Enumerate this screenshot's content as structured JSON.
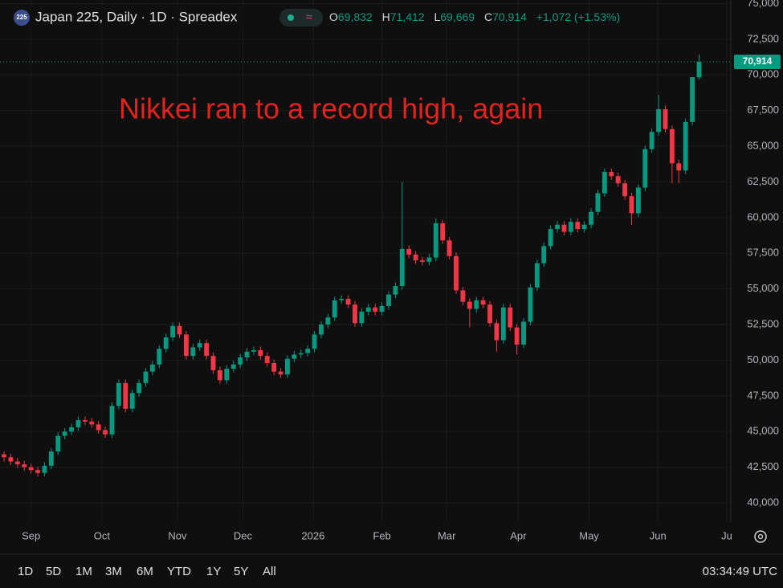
{
  "header": {
    "icon": "225",
    "title": "Japan 225, Daily · 1D · Spreadex",
    "badge": "≈",
    "o_label": "O",
    "open": "69,832",
    "h_label": "H",
    "high": "71,412",
    "l_label": "L",
    "low": "69,669",
    "c_label": "C",
    "close": "70,914",
    "change": "+1,072 (+1.53%)"
  },
  "chart_data": {
    "type": "candlestick",
    "annotation": "Nikkei ran to a record high, again",
    "up_color": "#089981",
    "down_color": "#f23645",
    "grid": true,
    "last_price": {
      "value": 70914,
      "label": "70,914"
    },
    "xlim": [
      -0.6,
      107.7
    ],
    "xticks": [
      {
        "value": 4,
        "label": "Sep"
      },
      {
        "value": 14.5,
        "label": "Oct"
      },
      {
        "value": 25.7,
        "label": "Nov"
      },
      {
        "value": 35.4,
        "label": "Dec"
      },
      {
        "value": 45.8,
        "label": "2026"
      },
      {
        "value": 56,
        "label": "Feb"
      },
      {
        "value": 65.6,
        "label": "Mar"
      },
      {
        "value": 76.2,
        "label": "Apr"
      },
      {
        "value": 86.7,
        "label": "May"
      },
      {
        "value": 96.9,
        "label": "Jun"
      },
      {
        "value": 107.1,
        "label": "Ju"
      }
    ],
    "ylim": [
      38650,
      75250
    ],
    "yticks": [
      {
        "value": 40000,
        "label": "40,000"
      },
      {
        "value": 42500,
        "label": "42,500"
      },
      {
        "value": 45000,
        "label": "45,000"
      },
      {
        "value": 47500,
        "label": "47,500"
      },
      {
        "value": 50000,
        "label": "50,000"
      },
      {
        "value": 52500,
        "label": "52,500"
      },
      {
        "value": 55000,
        "label": "55,000"
      },
      {
        "value": 57500,
        "label": "57,500"
      },
      {
        "value": 60000,
        "label": "60,000"
      },
      {
        "value": 62500,
        "label": "62,500"
      },
      {
        "value": 65000,
        "label": "65,000"
      },
      {
        "value": 67500,
        "label": "67,500"
      },
      {
        "value": 70000,
        "label": "70,000"
      },
      {
        "value": 72500,
        "label": "72,500"
      },
      {
        "value": 75000,
        "label": "75,000"
      }
    ],
    "candles": [
      [
        43400,
        43600,
        42900,
        43200
      ],
      [
        43200,
        43450,
        42650,
        42900
      ],
      [
        42900,
        43150,
        42450,
        42700
      ],
      [
        42700,
        42950,
        42250,
        42500
      ],
      [
        42500,
        42750,
        42050,
        42300
      ],
      [
        42300,
        42550,
        41850,
        42100
      ],
      [
        42100,
        42850,
        41850,
        42600
      ],
      [
        42600,
        43850,
        42350,
        43600
      ],
      [
        43600,
        44950,
        43350,
        44700
      ],
      [
        44700,
        45250,
        44450,
        45000
      ],
      [
        45000,
        45550,
        44750,
        45300
      ],
      [
        45300,
        46050,
        45050,
        45800
      ],
      [
        45800,
        46050,
        45450,
        45700
      ],
      [
        45700,
        45950,
        45250,
        45500
      ],
      [
        45500,
        45750,
        44850,
        45100
      ],
      [
        45100,
        45350,
        44550,
        44800
      ],
      [
        44800,
        47050,
        44550,
        46800
      ],
      [
        46800,
        48650,
        46550,
        48400
      ],
      [
        48400,
        48650,
        46350,
        46600
      ],
      [
        46600,
        47950,
        46350,
        47700
      ],
      [
        47700,
        48650,
        47450,
        48400
      ],
      [
        48400,
        49450,
        48150,
        49200
      ],
      [
        49200,
        49950,
        48950,
        49700
      ],
      [
        49700,
        51050,
        49450,
        50800
      ],
      [
        50800,
        51850,
        50550,
        51600
      ],
      [
        51600,
        52650,
        51350,
        52400
      ],
      [
        52400,
        52650,
        51550,
        51800
      ],
      [
        51800,
        52050,
        50050,
        50300
      ],
      [
        50300,
        51150,
        50050,
        50900
      ],
      [
        50900,
        51450,
        50650,
        51200
      ],
      [
        51200,
        51450,
        50050,
        50300
      ],
      [
        50300,
        50550,
        49050,
        49300
      ],
      [
        49300,
        49550,
        48350,
        48600
      ],
      [
        48600,
        49650,
        48350,
        49400
      ],
      [
        49400,
        49950,
        49150,
        49700
      ],
      [
        49700,
        50450,
        49450,
        50200
      ],
      [
        50200,
        50850,
        49950,
        50600
      ],
      [
        50600,
        50950,
        50350,
        50700
      ],
      [
        50700,
        50950,
        50050,
        50300
      ],
      [
        50300,
        50550,
        49550,
        49800
      ],
      [
        49800,
        50050,
        48950,
        49200
      ],
      [
        49200,
        49450,
        48750,
        49000
      ],
      [
        49000,
        50350,
        48750,
        50100
      ],
      [
        50100,
        50650,
        49850,
        50400
      ],
      [
        50400,
        50750,
        50150,
        50500
      ],
      [
        50500,
        51050,
        50250,
        50800
      ],
      [
        50800,
        52050,
        50550,
        51800
      ],
      [
        51800,
        52750,
        51550,
        52500
      ],
      [
        52500,
        53250,
        52250,
        53000
      ],
      [
        53000,
        54450,
        52750,
        54200
      ],
      [
        54200,
        54550,
        53950,
        54300
      ],
      [
        54300,
        54550,
        53650,
        53900
      ],
      [
        53900,
        54150,
        52350,
        52600
      ],
      [
        52600,
        53650,
        52350,
        53400
      ],
      [
        53400,
        53950,
        53150,
        53700
      ],
      [
        53700,
        53950,
        53150,
        53400
      ],
      [
        53400,
        54050,
        53150,
        53800
      ],
      [
        53800,
        54850,
        53550,
        54600
      ],
      [
        54600,
        55450,
        54350,
        55200
      ],
      [
        55200,
        62500,
        54950,
        57800
      ],
      [
        57800,
        58050,
        57150,
        57400
      ],
      [
        57400,
        57650,
        56750,
        57000
      ],
      [
        57000,
        57250,
        56650,
        56900
      ],
      [
        56900,
        57450,
        56650,
        57200
      ],
      [
        57200,
        59950,
        56950,
        59600
      ],
      [
        59600,
        59850,
        58150,
        58400
      ],
      [
        58400,
        58650,
        57050,
        57300
      ],
      [
        57300,
        57550,
        54650,
        54900
      ],
      [
        54900,
        55150,
        53850,
        54100
      ],
      [
        54100,
        54350,
        52300,
        53600
      ],
      [
        53600,
        54450,
        53350,
        54200
      ],
      [
        54200,
        54450,
        53650,
        53900
      ],
      [
        53900,
        54150,
        52350,
        52600
      ],
      [
        52600,
        52850,
        50600,
        51400
      ],
      [
        51400,
        53950,
        51150,
        53700
      ],
      [
        53700,
        53950,
        52050,
        52300
      ],
      [
        52300,
        52550,
        50400,
        51100
      ],
      [
        51100,
        52950,
        50850,
        52700
      ],
      [
        52700,
        55350,
        52450,
        55100
      ],
      [
        55100,
        57050,
        54850,
        56800
      ],
      [
        56800,
        58250,
        56550,
        58000
      ],
      [
        58000,
        59450,
        57750,
        59200
      ],
      [
        59200,
        59750,
        58950,
        59500
      ],
      [
        59500,
        59750,
        58750,
        59000
      ],
      [
        59000,
        59950,
        58750,
        59700
      ],
      [
        59700,
        59950,
        58950,
        59200
      ],
      [
        59200,
        59750,
        58950,
        59500
      ],
      [
        59500,
        60650,
        59250,
        60400
      ],
      [
        60400,
        61950,
        60150,
        61700
      ],
      [
        61700,
        63450,
        61450,
        63200
      ],
      [
        63200,
        63450,
        62650,
        62900
      ],
      [
        62900,
        63150,
        62150,
        62400
      ],
      [
        62400,
        62650,
        61250,
        61500
      ],
      [
        61500,
        61750,
        59500,
        60300
      ],
      [
        60300,
        62350,
        60050,
        62100
      ],
      [
        62100,
        65050,
        61850,
        64800
      ],
      [
        64800,
        66250,
        64550,
        66000
      ],
      [
        66000,
        68600,
        65750,
        67600
      ],
      [
        67600,
        67850,
        65950,
        66200
      ],
      [
        66200,
        66450,
        62400,
        63800
      ],
      [
        63800,
        64050,
        62400,
        63300
      ],
      [
        63300,
        66950,
        63050,
        66700
      ],
      [
        66700,
        69850,
        66450,
        69842
      ],
      [
        69832,
        71412,
        69669,
        70914
      ]
    ]
  },
  "toolbar": {
    "ranges": [
      "1D",
      "5D",
      "1M",
      "3M",
      "6M",
      "YTD",
      "1Y",
      "5Y",
      "All"
    ],
    "time": "03:34:49 UTC"
  }
}
